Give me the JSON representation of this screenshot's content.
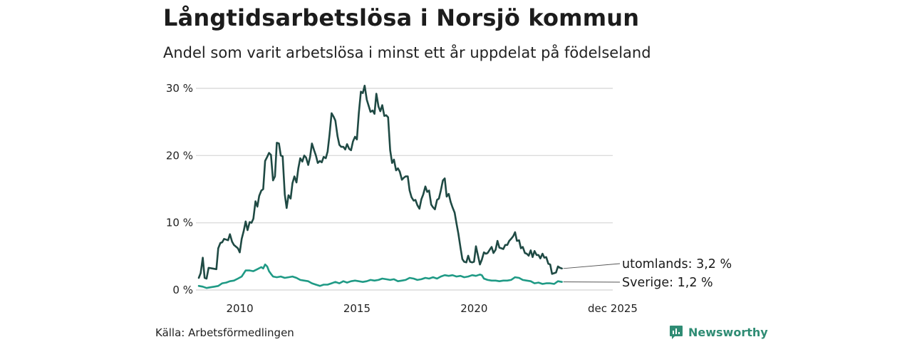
{
  "header": {
    "title": "Långtidsarbetslösa i Norsjö kommun",
    "subtitle": "Andel som varit arbetslösa i minst ett år uppdelat på födelseland"
  },
  "footer": {
    "source": "Källa: Arbetsförmedlingen",
    "brand": "Newsworthy"
  },
  "colors": {
    "utomlands": "#1f4a44",
    "sverige": "#1f9a85",
    "grid": "#dcdcdc",
    "brand": "#2f8c74"
  },
  "chart_data": {
    "type": "line",
    "title": "Långtidsarbetslösa i Norsjö kommun",
    "subtitle": "Andel som varit arbetslösa i minst ett år uppdelat på födelseland",
    "xlabel": "",
    "ylabel": "",
    "x_range": [
      2008.25,
      2025.92
    ],
    "ylim": [
      0,
      30
    ],
    "y_ticks": [
      0,
      10,
      20,
      30
    ],
    "y_tick_labels": [
      "0 %",
      "10 %",
      "20 %",
      "30 %"
    ],
    "x_ticks": [
      2010,
      2015,
      2020,
      2025.92
    ],
    "x_tick_labels": [
      "2010",
      "2015",
      "2020",
      "dec 2025"
    ],
    "grid": true,
    "series": [
      {
        "name": "utomlands",
        "end_label": "utomlands: 3,2 %",
        "points": [
          [
            2008.25,
            1.8
          ],
          [
            2008.33,
            2.5
          ],
          [
            2008.42,
            4.8
          ],
          [
            2008.5,
            1.8
          ],
          [
            2008.58,
            1.7
          ],
          [
            2008.67,
            3.3
          ],
          [
            2008.83,
            3.2
          ],
          [
            2009.0,
            3.1
          ],
          [
            2009.08,
            6.2
          ],
          [
            2009.17,
            7.0
          ],
          [
            2009.25,
            7.1
          ],
          [
            2009.33,
            7.6
          ],
          [
            2009.5,
            7.4
          ],
          [
            2009.58,
            8.3
          ],
          [
            2009.67,
            7.2
          ],
          [
            2009.75,
            6.7
          ],
          [
            2009.92,
            6.2
          ],
          [
            2010.0,
            5.6
          ],
          [
            2010.08,
            7.6
          ],
          [
            2010.17,
            8.8
          ],
          [
            2010.25,
            10.2
          ],
          [
            2010.33,
            8.9
          ],
          [
            2010.42,
            10.1
          ],
          [
            2010.5,
            10.0
          ],
          [
            2010.58,
            10.6
          ],
          [
            2010.67,
            13.2
          ],
          [
            2010.75,
            12.4
          ],
          [
            2010.83,
            14.0
          ],
          [
            2010.92,
            14.8
          ],
          [
            2011.0,
            15.0
          ],
          [
            2011.08,
            19.2
          ],
          [
            2011.17,
            19.8
          ],
          [
            2011.25,
            20.4
          ],
          [
            2011.33,
            20.1
          ],
          [
            2011.42,
            16.3
          ],
          [
            2011.5,
            16.9
          ],
          [
            2011.58,
            21.9
          ],
          [
            2011.67,
            21.8
          ],
          [
            2011.75,
            20.0
          ],
          [
            2011.83,
            19.9
          ],
          [
            2011.92,
            14.2
          ],
          [
            2012.0,
            12.2
          ],
          [
            2012.08,
            14.1
          ],
          [
            2012.17,
            13.6
          ],
          [
            2012.25,
            15.9
          ],
          [
            2012.33,
            16.9
          ],
          [
            2012.42,
            16.0
          ],
          [
            2012.5,
            18.1
          ],
          [
            2012.58,
            19.6
          ],
          [
            2012.67,
            19.1
          ],
          [
            2012.75,
            20.0
          ],
          [
            2012.83,
            19.7
          ],
          [
            2012.92,
            18.6
          ],
          [
            2013.0,
            19.8
          ],
          [
            2013.08,
            21.8
          ],
          [
            2013.17,
            20.8
          ],
          [
            2013.25,
            20.0
          ],
          [
            2013.33,
            18.9
          ],
          [
            2013.42,
            19.2
          ],
          [
            2013.5,
            19.0
          ],
          [
            2013.58,
            19.8
          ],
          [
            2013.67,
            19.6
          ],
          [
            2013.75,
            20.6
          ],
          [
            2013.83,
            23.1
          ],
          [
            2013.92,
            26.3
          ],
          [
            2014.0,
            25.8
          ],
          [
            2014.08,
            25.2
          ],
          [
            2014.17,
            22.9
          ],
          [
            2014.25,
            21.6
          ],
          [
            2014.33,
            21.3
          ],
          [
            2014.42,
            21.3
          ],
          [
            2014.5,
            20.9
          ],
          [
            2014.58,
            21.7
          ],
          [
            2014.67,
            21.0
          ],
          [
            2014.75,
            20.8
          ],
          [
            2014.83,
            22.1
          ],
          [
            2014.92,
            22.8
          ],
          [
            2015.0,
            22.4
          ],
          [
            2015.08,
            26.3
          ],
          [
            2015.17,
            29.5
          ],
          [
            2015.25,
            29.3
          ],
          [
            2015.33,
            30.4
          ],
          [
            2015.42,
            28.3
          ],
          [
            2015.5,
            27.4
          ],
          [
            2015.58,
            26.5
          ],
          [
            2015.67,
            26.7
          ],
          [
            2015.75,
            26.2
          ],
          [
            2015.83,
            29.2
          ],
          [
            2015.92,
            27.3
          ],
          [
            2016.0,
            26.6
          ],
          [
            2016.08,
            27.5
          ],
          [
            2016.17,
            25.9
          ],
          [
            2016.25,
            26.0
          ],
          [
            2016.33,
            25.7
          ],
          [
            2016.42,
            20.8
          ],
          [
            2016.5,
            18.9
          ],
          [
            2016.58,
            19.4
          ],
          [
            2016.67,
            17.8
          ],
          [
            2016.75,
            18.1
          ],
          [
            2016.83,
            17.6
          ],
          [
            2016.92,
            16.4
          ],
          [
            2017.0,
            16.7
          ],
          [
            2017.08,
            16.9
          ],
          [
            2017.17,
            16.9
          ],
          [
            2017.25,
            14.8
          ],
          [
            2017.33,
            13.8
          ],
          [
            2017.42,
            13.3
          ],
          [
            2017.5,
            13.4
          ],
          [
            2017.58,
            12.6
          ],
          [
            2017.67,
            12.1
          ],
          [
            2017.75,
            13.5
          ],
          [
            2017.83,
            14.2
          ],
          [
            2017.92,
            15.4
          ],
          [
            2018.0,
            14.6
          ],
          [
            2018.08,
            14.8
          ],
          [
            2018.17,
            12.7
          ],
          [
            2018.25,
            12.3
          ],
          [
            2018.33,
            12.0
          ],
          [
            2018.42,
            13.4
          ],
          [
            2018.5,
            13.6
          ],
          [
            2018.58,
            14.8
          ],
          [
            2018.67,
            16.3
          ],
          [
            2018.75,
            16.6
          ],
          [
            2018.83,
            13.9
          ],
          [
            2018.92,
            14.3
          ],
          [
            2019.0,
            13.1
          ],
          [
            2019.08,
            12.3
          ],
          [
            2019.17,
            11.5
          ],
          [
            2019.25,
            9.9
          ],
          [
            2019.33,
            8.4
          ],
          [
            2019.42,
            6.3
          ],
          [
            2019.5,
            4.6
          ],
          [
            2019.58,
            4.2
          ],
          [
            2019.67,
            4.1
          ],
          [
            2019.75,
            5.1
          ],
          [
            2019.83,
            4.2
          ],
          [
            2019.92,
            4.1
          ],
          [
            2020.0,
            4.2
          ],
          [
            2020.08,
            6.5
          ],
          [
            2020.17,
            5.1
          ],
          [
            2020.25,
            3.8
          ],
          [
            2020.33,
            4.5
          ],
          [
            2020.42,
            5.6
          ],
          [
            2020.5,
            5.4
          ],
          [
            2020.58,
            5.5
          ],
          [
            2020.67,
            6.0
          ],
          [
            2020.75,
            6.4
          ],
          [
            2020.83,
            5.5
          ],
          [
            2020.92,
            6.0
          ],
          [
            2021.0,
            7.3
          ],
          [
            2021.08,
            6.3
          ],
          [
            2021.17,
            6.2
          ],
          [
            2021.25,
            6.1
          ],
          [
            2021.33,
            6.7
          ],
          [
            2021.42,
            6.7
          ],
          [
            2021.5,
            7.3
          ],
          [
            2021.58,
            7.6
          ],
          [
            2021.67,
            8.0
          ],
          [
            2021.75,
            8.6
          ],
          [
            2021.83,
            7.3
          ],
          [
            2021.92,
            7.4
          ],
          [
            2022.0,
            6.2
          ],
          [
            2022.08,
            6.4
          ],
          [
            2022.17,
            5.5
          ],
          [
            2022.25,
            5.4
          ],
          [
            2022.33,
            5.1
          ],
          [
            2022.42,
            5.9
          ],
          [
            2022.5,
            4.9
          ],
          [
            2022.58,
            5.8
          ],
          [
            2022.67,
            5.2
          ],
          [
            2022.75,
            5.2
          ],
          [
            2022.83,
            4.7
          ],
          [
            2022.92,
            5.4
          ],
          [
            2023.0,
            4.8
          ],
          [
            2023.08,
            4.9
          ],
          [
            2023.17,
            3.9
          ],
          [
            2023.25,
            3.8
          ],
          [
            2023.33,
            2.4
          ],
          [
            2023.42,
            2.5
          ],
          [
            2023.5,
            2.6
          ],
          [
            2023.58,
            3.5
          ],
          [
            2023.67,
            3.3
          ],
          [
            2023.75,
            3.2
          ]
        ]
      },
      {
        "name": "Sverige",
        "end_label": "Sverige: 1,2 %",
        "points": [
          [
            2008.25,
            0.6
          ],
          [
            2008.42,
            0.5
          ],
          [
            2008.58,
            0.3
          ],
          [
            2008.75,
            0.4
          ],
          [
            2008.92,
            0.5
          ],
          [
            2009.08,
            0.6
          ],
          [
            2009.25,
            1.0
          ],
          [
            2009.42,
            1.1
          ],
          [
            2009.58,
            1.3
          ],
          [
            2009.75,
            1.4
          ],
          [
            2009.92,
            1.7
          ],
          [
            2010.08,
            2.0
          ],
          [
            2010.25,
            2.9
          ],
          [
            2010.42,
            2.9
          ],
          [
            2010.58,
            2.8
          ],
          [
            2010.75,
            3.1
          ],
          [
            2010.92,
            3.4
          ],
          [
            2011.0,
            3.2
          ],
          [
            2011.08,
            3.8
          ],
          [
            2011.17,
            3.5
          ],
          [
            2011.25,
            2.8
          ],
          [
            2011.33,
            2.4
          ],
          [
            2011.42,
            2.0
          ],
          [
            2011.58,
            1.9
          ],
          [
            2011.75,
            2.0
          ],
          [
            2011.92,
            1.8
          ],
          [
            2012.08,
            1.9
          ],
          [
            2012.25,
            2.0
          ],
          [
            2012.42,
            1.8
          ],
          [
            2012.58,
            1.5
          ],
          [
            2012.75,
            1.4
          ],
          [
            2012.92,
            1.3
          ],
          [
            2013.08,
            1.0
          ],
          [
            2013.25,
            0.8
          ],
          [
            2013.42,
            0.6
          ],
          [
            2013.58,
            0.8
          ],
          [
            2013.75,
            0.8
          ],
          [
            2013.92,
            1.0
          ],
          [
            2014.08,
            1.2
          ],
          [
            2014.25,
            1.0
          ],
          [
            2014.42,
            1.3
          ],
          [
            2014.58,
            1.1
          ],
          [
            2014.75,
            1.3
          ],
          [
            2014.92,
            1.4
          ],
          [
            2015.08,
            1.3
          ],
          [
            2015.25,
            1.2
          ],
          [
            2015.42,
            1.3
          ],
          [
            2015.58,
            1.5
          ],
          [
            2015.75,
            1.4
          ],
          [
            2015.92,
            1.5
          ],
          [
            2016.08,
            1.7
          ],
          [
            2016.25,
            1.6
          ],
          [
            2016.42,
            1.5
          ],
          [
            2016.58,
            1.6
          ],
          [
            2016.75,
            1.3
          ],
          [
            2016.92,
            1.4
          ],
          [
            2017.08,
            1.5
          ],
          [
            2017.25,
            1.8
          ],
          [
            2017.42,
            1.7
          ],
          [
            2017.58,
            1.5
          ],
          [
            2017.75,
            1.6
          ],
          [
            2017.92,
            1.8
          ],
          [
            2018.08,
            1.7
          ],
          [
            2018.25,
            1.9
          ],
          [
            2018.42,
            1.7
          ],
          [
            2018.58,
            2.0
          ],
          [
            2018.75,
            2.2
          ],
          [
            2018.92,
            2.1
          ],
          [
            2019.08,
            2.2
          ],
          [
            2019.25,
            2.0
          ],
          [
            2019.42,
            2.1
          ],
          [
            2019.58,
            1.9
          ],
          [
            2019.75,
            2.0
          ],
          [
            2019.92,
            2.2
          ],
          [
            2020.08,
            2.1
          ],
          [
            2020.25,
            2.3
          ],
          [
            2020.33,
            2.2
          ],
          [
            2020.42,
            1.7
          ],
          [
            2020.58,
            1.5
          ],
          [
            2020.75,
            1.4
          ],
          [
            2020.92,
            1.4
          ],
          [
            2021.08,
            1.3
          ],
          [
            2021.25,
            1.4
          ],
          [
            2021.42,
            1.4
          ],
          [
            2021.58,
            1.5
          ],
          [
            2021.75,
            1.9
          ],
          [
            2021.92,
            1.8
          ],
          [
            2022.08,
            1.5
          ],
          [
            2022.25,
            1.4
          ],
          [
            2022.42,
            1.3
          ],
          [
            2022.58,
            1.0
          ],
          [
            2022.75,
            1.1
          ],
          [
            2022.92,
            0.9
          ],
          [
            2023.08,
            1.0
          ],
          [
            2023.25,
            1.0
          ],
          [
            2023.42,
            0.9
          ],
          [
            2023.58,
            1.3
          ],
          [
            2023.75,
            1.2
          ]
        ]
      }
    ]
  }
}
